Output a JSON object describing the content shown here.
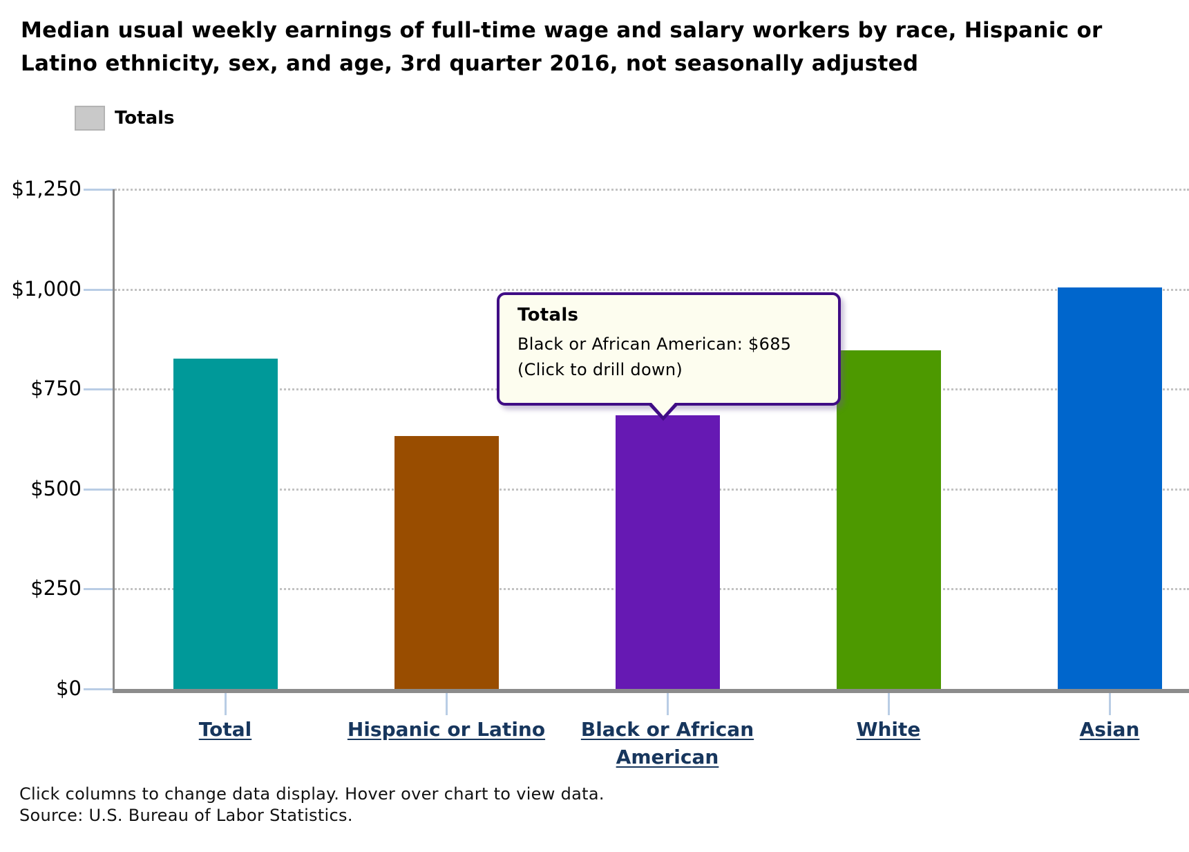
{
  "page": {
    "title": "Median usual weekly earnings of full-time wage and salary workers by race, Hispanic or Latino ethnicity, sex, and age, 3rd quarter 2016, not seasonally adjusted"
  },
  "legend": {
    "label": "Totals",
    "swatch_color": "#c9c9c9"
  },
  "chart_data": {
    "type": "bar",
    "series_name": "Totals",
    "categories": [
      "Total",
      "Hispanic or Latino",
      "Black or African American",
      "White",
      "Asian"
    ],
    "values": [
      827,
      632,
      685,
      847,
      1005
    ],
    "bar_colors": [
      "#009999",
      "#994d00",
      "#6619b3",
      "#4d9900",
      "#0066cc"
    ],
    "title": "Median usual weekly earnings of full-time wage and salary workers by race, Hispanic or Latino ethnicity, sex, and age, 3rd quarter 2016, not seasonally adjusted",
    "xlabel": "",
    "ylabel": "",
    "ylim": [
      0,
      1250
    ],
    "y_tick_labels": [
      "$1,250",
      "$1,000",
      "$750",
      "$500",
      "$250",
      "$0"
    ],
    "y_tick_values": [
      1250,
      1000,
      750,
      500,
      250,
      0
    ],
    "grid": "horizontal-dotted",
    "legend_position": "top-left",
    "axis_color": "#8a8a8a",
    "tick_color": "#b9cde5",
    "category_label_color": "#17365d"
  },
  "tooltip": {
    "title": "Totals",
    "value_line": "Black or African American: $685",
    "hint_line": "(Click to drill down)",
    "target_category": "Black or African American",
    "background_color": "#fdfdef",
    "border_color": "#400d85"
  },
  "footer": {
    "line1": "Click columns to change data display. Hover over chart to view data.",
    "line2": "Source: U.S. Bureau of Labor Statistics."
  }
}
